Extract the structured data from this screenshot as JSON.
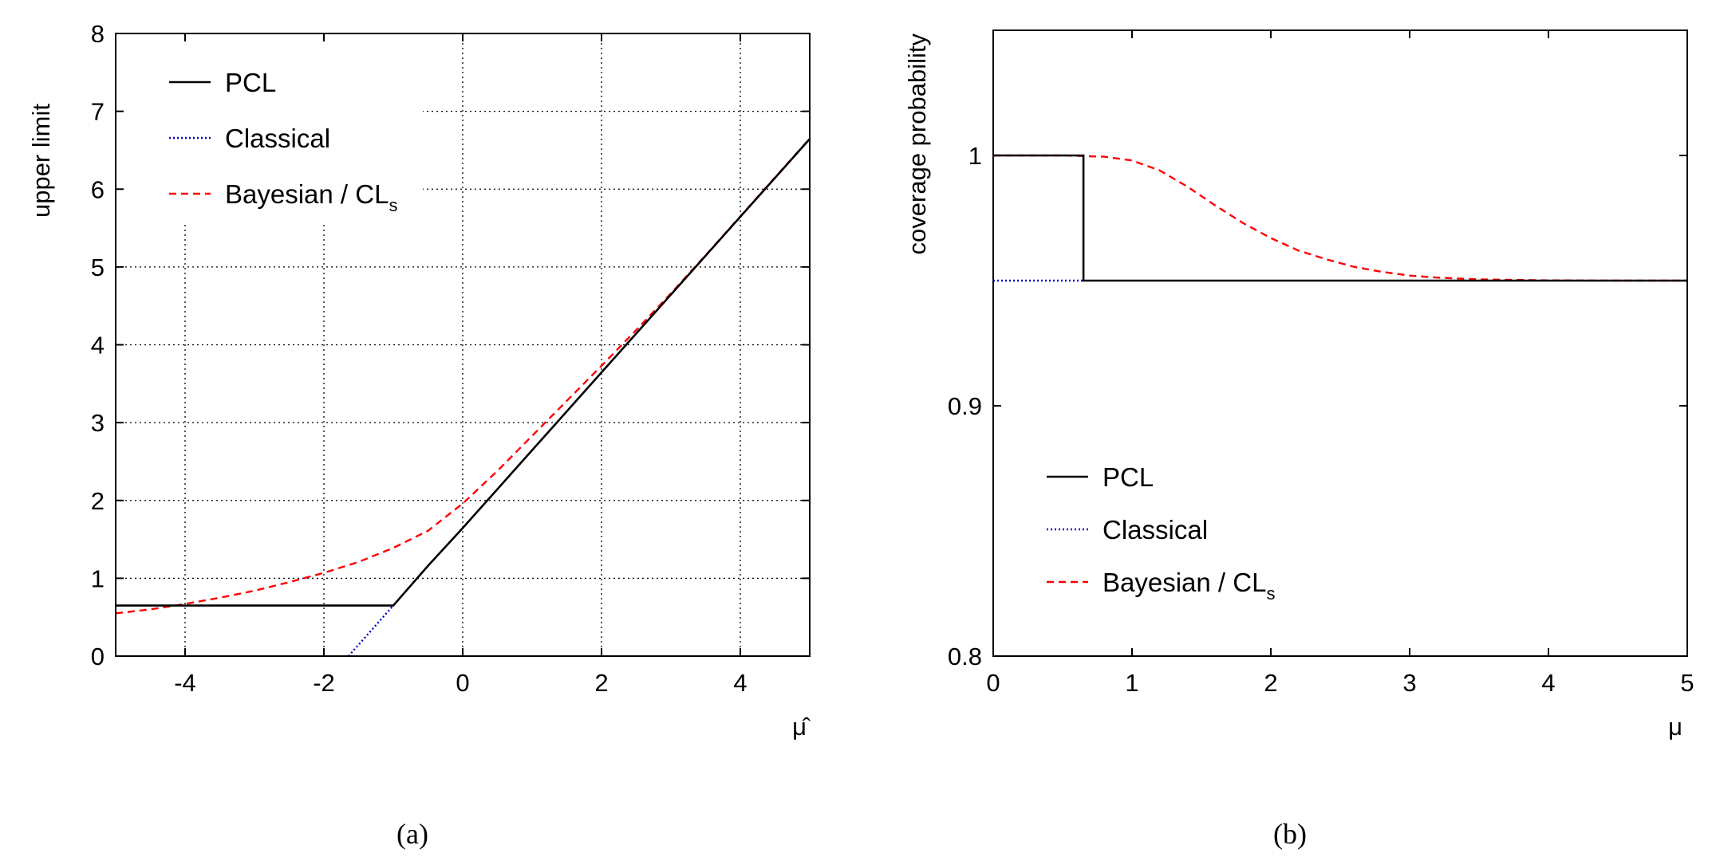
{
  "chart_data": [
    {
      "type": "line",
      "caption": "(a)",
      "xlabel": "μ̂",
      "ylabel": "upper limit",
      "xlim": [
        -5,
        5
      ],
      "ylim": [
        0,
        8
      ],
      "xticks": [
        -4,
        -2,
        0,
        2,
        4
      ],
      "yticks": [
        0,
        1,
        2,
        3,
        4,
        5,
        6,
        7,
        8
      ],
      "xtick_labels": [
        "-4",
        "-2",
        "0",
        "2",
        "4"
      ],
      "ytick_labels": [
        "0",
        "1",
        "2",
        "3",
        "4",
        "5",
        "6",
        "7",
        "8"
      ],
      "grid": true,
      "legend_position": "top-left",
      "series": [
        {
          "name": "PCL",
          "color": "#000000",
          "style": "solid",
          "x": [
            -5,
            -1.0,
            -0.5,
            0,
            0.5,
            1,
            1.5,
            2,
            2.5,
            3,
            3.5,
            4,
            4.5,
            5
          ],
          "y": [
            0.65,
            0.65,
            1.16,
            1.645,
            2.145,
            2.645,
            3.145,
            3.645,
            4.145,
            4.645,
            5.145,
            5.645,
            6.145,
            6.645
          ]
        },
        {
          "name": "Classical",
          "color": "#0000cc",
          "style": "dotted",
          "x": [
            -1.645,
            -1.0
          ],
          "y": [
            0.0,
            0.65
          ]
        },
        {
          "name": "Bayesian / CL",
          "name_subscript": "s",
          "color": "#ff0000",
          "style": "dashed",
          "x": [
            -5,
            -4.5,
            -4,
            -3.5,
            -3,
            -2.5,
            -2,
            -1.5,
            -1,
            -0.5,
            0,
            0.5,
            1,
            1.5,
            2,
            2.5,
            3,
            3.5,
            4,
            4.5,
            5
          ],
          "y": [
            0.55,
            0.6,
            0.67,
            0.75,
            0.84,
            0.95,
            1.07,
            1.21,
            1.39,
            1.61,
            1.96,
            2.38,
            2.83,
            3.28,
            3.73,
            4.19,
            4.66,
            5.15,
            5.65,
            6.15,
            6.65
          ]
        }
      ]
    },
    {
      "type": "line",
      "caption": "(b)",
      "xlabel": "μ",
      "ylabel": "coverage probability",
      "xlim": [
        0,
        5
      ],
      "ylim": [
        0.8,
        1.05
      ],
      "xticks": [
        0,
        1,
        2,
        3,
        4,
        5
      ],
      "yticks": [
        0.8,
        0.9,
        1.0
      ],
      "xtick_labels": [
        "0",
        "1",
        "2",
        "3",
        "4",
        "5"
      ],
      "ytick_labels": [
        "0.8",
        "0.9",
        "1"
      ],
      "grid": false,
      "legend_position": "bottom-left",
      "series": [
        {
          "name": "PCL",
          "color": "#000000",
          "style": "solid",
          "x": [
            0,
            0.65,
            0.65,
            5
          ],
          "y": [
            1.0,
            1.0,
            0.95,
            0.95
          ]
        },
        {
          "name": "Classical",
          "color": "#0000cc",
          "style": "dotted",
          "x": [
            0,
            0.65
          ],
          "y": [
            0.95,
            0.95
          ]
        },
        {
          "name": "Bayesian / CL",
          "name_subscript": "s",
          "color": "#ff0000",
          "style": "dashed",
          "x": [
            0,
            0.5,
            0.8,
            1.0,
            1.2,
            1.4,
            1.6,
            1.8,
            2.0,
            2.2,
            2.4,
            2.6,
            2.8,
            3.0,
            3.2,
            3.5,
            4.0,
            4.5,
            5.0
          ],
          "y": [
            1.0,
            1.0,
            0.9995,
            0.998,
            0.994,
            0.9875,
            0.98,
            0.973,
            0.967,
            0.962,
            0.9585,
            0.9555,
            0.9535,
            0.952,
            0.9512,
            0.9505,
            0.9501,
            0.95,
            0.95
          ]
        }
      ]
    }
  ]
}
